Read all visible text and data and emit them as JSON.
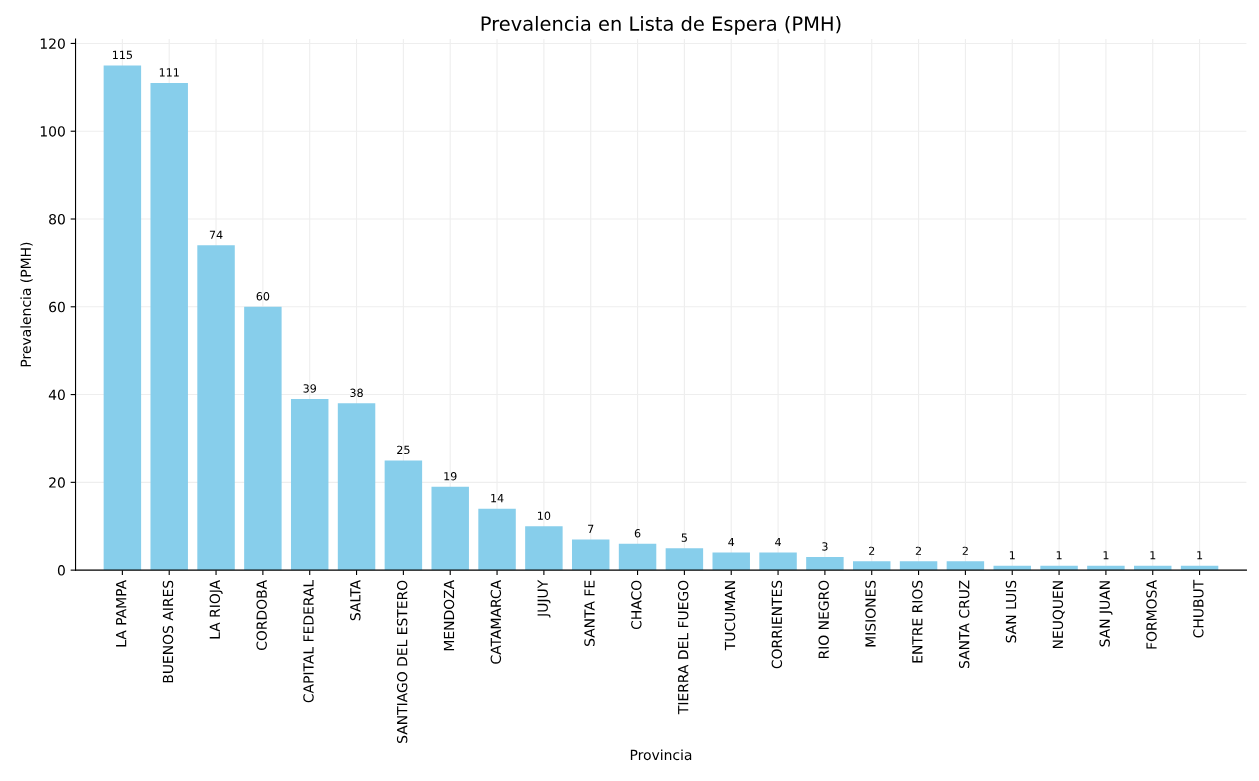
{
  "chart_data": {
    "type": "bar",
    "title": "Prevalencia en Lista de Espera (PMH)",
    "xlabel": "Provincia",
    "ylabel": "Prevalencia (PMH)",
    "categories": [
      "LA PAMPA",
      "BUENOS AIRES",
      "LA RIOJA",
      "CORDOBA",
      "CAPITAL FEDERAL",
      "SALTA",
      "SANTIAGO DEL ESTERO",
      "MENDOZA",
      "CATAMARCA",
      "JUJUY",
      "SANTA FE",
      "CHACO",
      "TIERRA DEL FUEGO",
      "TUCUMAN",
      "CORRIENTES",
      "RIO NEGRO",
      "MISIONES",
      "ENTRE RIOS",
      "SANTA CRUZ",
      "SAN LUIS",
      "NEUQUEN",
      "SAN JUAN",
      "FORMOSA",
      "CHUBUT"
    ],
    "values": [
      115,
      111,
      74,
      60,
      39,
      38,
      25,
      19,
      14,
      10,
      7,
      6,
      5,
      4,
      4,
      3,
      2,
      2,
      2,
      1,
      1,
      1,
      1,
      1
    ],
    "color": "#87ceeb",
    "data_labels": true,
    "ylim": [
      0,
      121
    ],
    "yticks": [
      0,
      20,
      40,
      60,
      80,
      100,
      120
    ],
    "grid": true
  }
}
